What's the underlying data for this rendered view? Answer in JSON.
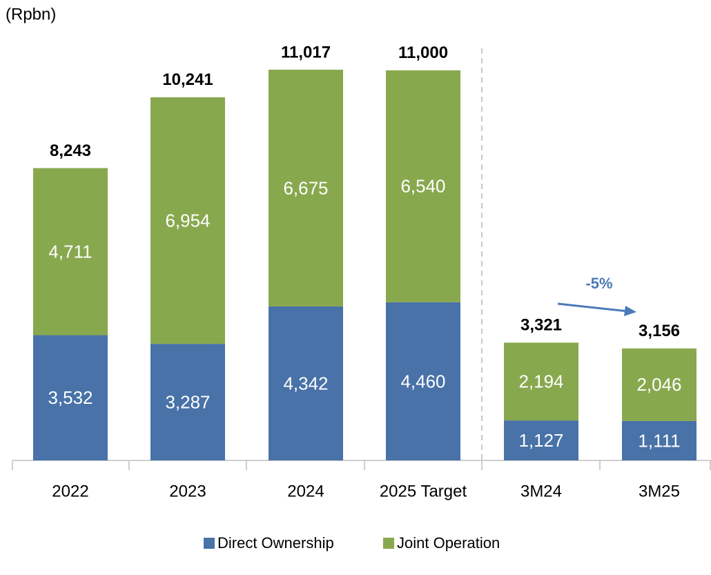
{
  "chart_data": {
    "type": "stacked_bar",
    "unit_label": "(Rpbn)",
    "categories": [
      "2022",
      "2023",
      "2024",
      "2025 Target",
      "3M24",
      "3M25"
    ],
    "series": [
      {
        "name": "Direct Ownership",
        "color": "#4872a8",
        "values": [
          3532,
          3287,
          4342,
          4460,
          1127,
          1111
        ],
        "value_labels": [
          "3,532",
          "3,287",
          "4,342",
          "4,460",
          "1,127",
          "1,111"
        ]
      },
      {
        "name": "Joint Operation",
        "color": "#88a84e",
        "values": [
          4711,
          6954,
          6675,
          6540,
          2194,
          2046
        ],
        "value_labels": [
          "4,711",
          "6,954",
          "6,675",
          "6,540",
          "2,194",
          "2,046"
        ]
      }
    ],
    "totals": [
      8243,
      10241,
      11017,
      11000,
      3321,
      3156
    ],
    "total_labels": [
      "8,243",
      "10,241",
      "11,017",
      "11,000",
      "3,321",
      "3,156"
    ],
    "annotation": "-5%",
    "legend": "bottom"
  }
}
